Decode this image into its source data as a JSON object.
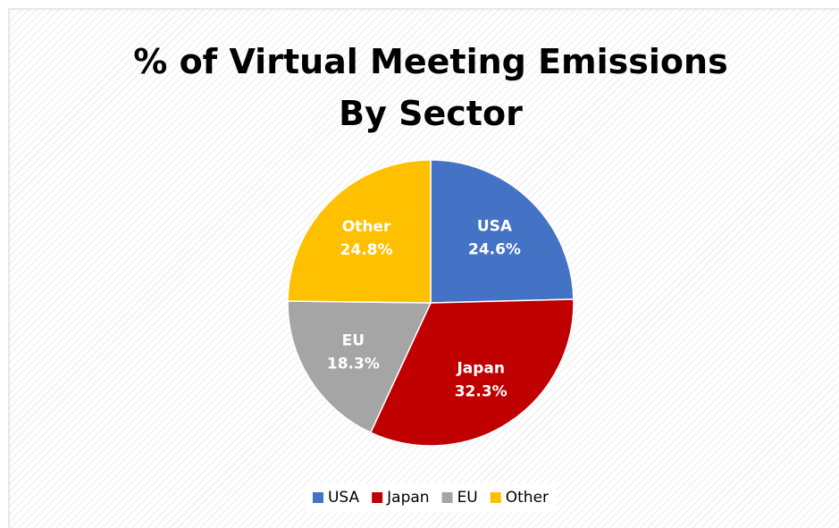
{
  "chart_data": {
    "type": "pie",
    "title": "% of Virtual Meeting Emissions By Sector",
    "categories": [
      "USA",
      "Japan",
      "EU",
      "Other"
    ],
    "values": [
      24.6,
      32.3,
      18.3,
      24.8
    ],
    "value_labels": [
      "24.6%",
      "32.3%",
      "18.3%",
      "24.8%"
    ],
    "colors": [
      "#4472c4",
      "#c00000",
      "#a5a5a5",
      "#ffc000"
    ],
    "legend": "bottom"
  }
}
